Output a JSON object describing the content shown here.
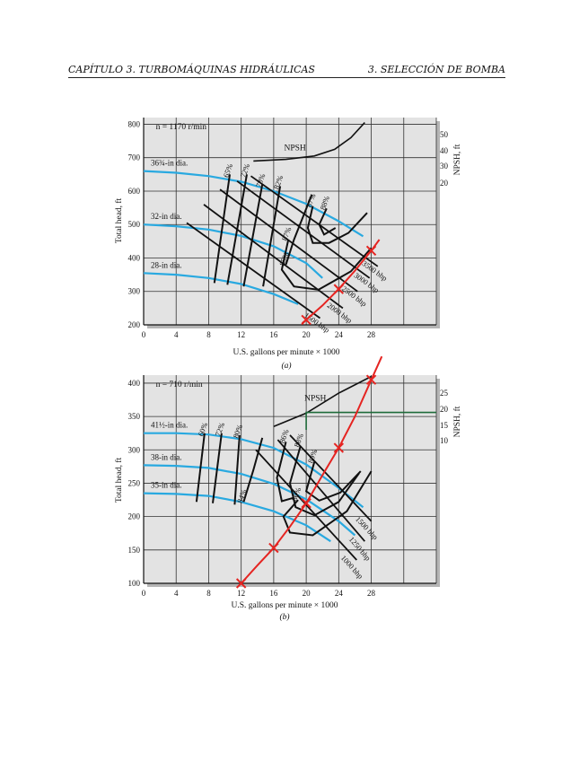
{
  "header": {
    "chapter": "CAPÍTULO 3.  TURBOMÁQUINAS HIDRÁULICAS",
    "section": "3.  SELECCIÓN DE BOMBA"
  },
  "colors": {
    "impeller_curve": "#29a9e0",
    "efficiency_curve": "#111111",
    "bhp_curve": "#111111",
    "system_curve": "#e52421",
    "npsh_marker": "#1e6b3a",
    "plot_background": "#e3e3e3",
    "grid": "#333333"
  },
  "chart_data": [
    {
      "type": "line",
      "caption": "(a)",
      "speed_label": "n = 1170 r/min",
      "xlabel": "U.S. gallons per minute × 1000",
      "ylabel": "Total head, ft",
      "ylabel_right": "NPSH, ft",
      "x_ticks": [
        "0",
        "4",
        "8",
        "12",
        "16",
        "20",
        "24",
        "28"
      ],
      "y_ticks": [
        "200",
        "300",
        "400",
        "500",
        "600",
        "700",
        "800"
      ],
      "npsh_ticks": [
        "20",
        "30",
        "40",
        "50"
      ],
      "xlim": [
        0,
        36
      ],
      "ylim": [
        200,
        820
      ],
      "grid": true,
      "impeller_curves": [
        {
          "label": "36¾-in dia.",
          "x": [
            0,
            4,
            8,
            12,
            16,
            20,
            24,
            27
          ],
          "y": [
            660,
            655,
            645,
            628,
            600,
            562,
            510,
            465
          ]
        },
        {
          "label": "32-in dia.",
          "x": [
            0,
            4,
            8,
            12,
            16,
            20,
            22
          ],
          "y": [
            500,
            495,
            485,
            466,
            435,
            385,
            340
          ]
        },
        {
          "label": "28-in dia.",
          "x": [
            0,
            4,
            8,
            12,
            16,
            19
          ],
          "y": [
            355,
            350,
            340,
            322,
            292,
            262
          ]
        }
      ],
      "efficiency_curves": [
        {
          "label": "65%",
          "x": [
            8.7,
            10.6
          ],
          "y": [
            325,
            650
          ]
        },
        {
          "label": "72%",
          "x": [
            10.3,
            12.7
          ],
          "y": [
            320,
            650
          ]
        },
        {
          "label": "78%",
          "x": [
            12.3,
            14.6
          ],
          "y": [
            315,
            620
          ]
        },
        {
          "label": "82%",
          "x": [
            14.7,
            16.8
          ],
          "y": [
            315,
            615
          ]
        },
        {
          "label": "85%",
          "x": [
            17.5,
            18.5,
            20.7
          ],
          "y": [
            380,
            455,
            590
          ]
        },
        {
          "label": "87%",
          "x": [
            20.8,
            20.2,
            20.8,
            22.8,
            25.2,
            27.5
          ],
          "y": [
            555,
            490,
            445,
            445,
            475,
            535
          ]
        },
        {
          "label": "88%",
          "x": [
            22.5,
            21.6,
            22.2,
            23.6
          ],
          "y": [
            548,
            500,
            470,
            490
          ]
        },
        {
          "label": "87%",
          "x": [
            17.8,
            17.0,
            18.5,
            21.5,
            25.5,
            28.0
          ],
          "y": [
            455,
            365,
            315,
            305,
            360,
            430
          ]
        }
      ],
      "npsh_curve": {
        "label": "NPSH",
        "x": [
          13.5,
          17.5,
          21,
          23.5,
          25.5,
          27.2
        ],
        "y": [
          690,
          695,
          705,
          725,
          760,
          805
        ]
      },
      "bhp_lines": [
        {
          "label": "1500 bhp",
          "x": [
            5.3,
            21.7
          ],
          "y": [
            505,
            220
          ]
        },
        {
          "label": "2000 bhp",
          "x": [
            7.4,
            24.5
          ],
          "y": [
            560,
            250
          ]
        },
        {
          "label": "2500 bhp",
          "x": [
            9.4,
            26.3
          ],
          "y": [
            605,
            300
          ]
        },
        {
          "label": "3000 bhp",
          "x": [
            11.5,
            27.8
          ],
          "y": [
            630,
            340
          ]
        },
        {
          "label": "3500 bhp",
          "x": [
            13.2,
            28.8
          ],
          "y": [
            645,
            375
          ]
        }
      ],
      "system_curve": {
        "x": [
          19.5,
          20,
          22,
          24,
          26,
          28,
          29
        ],
        "y": [
          205,
          215,
          258,
          307,
          362,
          422,
          455
        ]
      },
      "system_markers": [
        {
          "x": 20,
          "y": 215
        },
        {
          "x": 24,
          "y": 307
        },
        {
          "x": 28,
          "y": 422
        }
      ]
    },
    {
      "type": "line",
      "caption": "(b)",
      "speed_label": "n = 710 r/min",
      "xlabel": "U.S. gallons per minute × 1000",
      "ylabel": "Total head, ft",
      "ylabel_right": "NPSH, ft",
      "x_ticks": [
        "0",
        "4",
        "8",
        "12",
        "16",
        "20",
        "24",
        "28"
      ],
      "y_ticks": [
        "100",
        "150",
        "200",
        "250",
        "300",
        "350",
        "400"
      ],
      "npsh_ticks": [
        "10",
        "15",
        "20",
        "25"
      ],
      "xlim": [
        0,
        36
      ],
      "ylim": [
        100,
        412
      ],
      "grid": true,
      "impeller_curves": [
        {
          "label": "41½-in dia.",
          "x": [
            0,
            4,
            8,
            12,
            16,
            20,
            24,
            27
          ],
          "y": [
            325,
            325,
            323,
            316,
            303,
            278,
            243,
            214
          ]
        },
        {
          "label": "38-in dia.",
          "x": [
            0,
            4,
            8,
            12,
            16,
            20,
            24,
            26
          ],
          "y": [
            277,
            276,
            273,
            264,
            249,
            226,
            193,
            172
          ]
        },
        {
          "label": "35-in dia.",
          "x": [
            0,
            4,
            8,
            12,
            16,
            20,
            23
          ],
          "y": [
            235,
            234,
            231,
            222,
            208,
            187,
            163
          ]
        }
      ],
      "efficiency_curves": [
        {
          "label": "60%",
          "x": [
            6.5,
            7.5
          ],
          "y": [
            222,
            325
          ]
        },
        {
          "label": "72%",
          "x": [
            8.5,
            9.6
          ],
          "y": [
            220,
            325
          ]
        },
        {
          "label": "80%",
          "x": [
            11.2,
            11.8
          ],
          "y": [
            218,
            322
          ]
        },
        {
          "label": "84%",
          "x": [
            12.3,
            13.5,
            14.6
          ],
          "y": [
            222,
            270,
            318
          ]
        },
        {
          "label": "86%",
          "x": [
            17.5,
            16.4,
            17.0,
            18.4
          ],
          "y": [
            312,
            258,
            223,
            228
          ]
        },
        {
          "label": "88%",
          "x": [
            19.3,
            18.0,
            18.7,
            21.0,
            24.0,
            26.5
          ],
          "y": [
            306,
            250,
            214,
            202,
            222,
            265
          ]
        },
        {
          "label": "89%",
          "x": [
            21.0,
            20.0,
            21.6,
            24.2,
            26.7
          ],
          "y": [
            282,
            238,
            224,
            236,
            268
          ]
        },
        {
          "label": "86%",
          "x": [
            19.0,
            17.2,
            18.0,
            20.8,
            25.0,
            28.0
          ],
          "y": [
            225,
            200,
            176,
            172,
            208,
            268
          ]
        }
      ],
      "npsh_curve": {
        "label": "NPSH",
        "x": [
          16,
          20,
          24,
          28
        ],
        "y": [
          335,
          355,
          385,
          410
        ]
      },
      "npsh_marker": {
        "x": [
          20,
          20,
          36
        ],
        "y": [
          330,
          356,
          356
        ]
      },
      "bhp_lines": [
        {
          "label": "1000 bhp",
          "x": [
            13.8,
            26.2
          ],
          "y": [
            300,
            135
          ]
        },
        {
          "label": "1250 bhp",
          "x": [
            16.5,
            27.2
          ],
          "y": [
            315,
            163
          ]
        },
        {
          "label": "1500 bhp",
          "x": [
            18.0,
            28.0
          ],
          "y": [
            322,
            193
          ]
        }
      ],
      "system_curve": {
        "x": [
          12,
          14,
          16,
          18,
          20,
          22,
          24,
          26,
          28,
          29.3
        ],
        "y": [
          100,
          127,
          153,
          185,
          220,
          262,
          303,
          350,
          405,
          440
        ]
      },
      "system_markers": [
        {
          "x": 12,
          "y": 100
        },
        {
          "x": 16,
          "y": 153
        },
        {
          "x": 20,
          "y": 220
        },
        {
          "x": 24,
          "y": 303
        },
        {
          "x": 28,
          "y": 405
        }
      ]
    }
  ]
}
